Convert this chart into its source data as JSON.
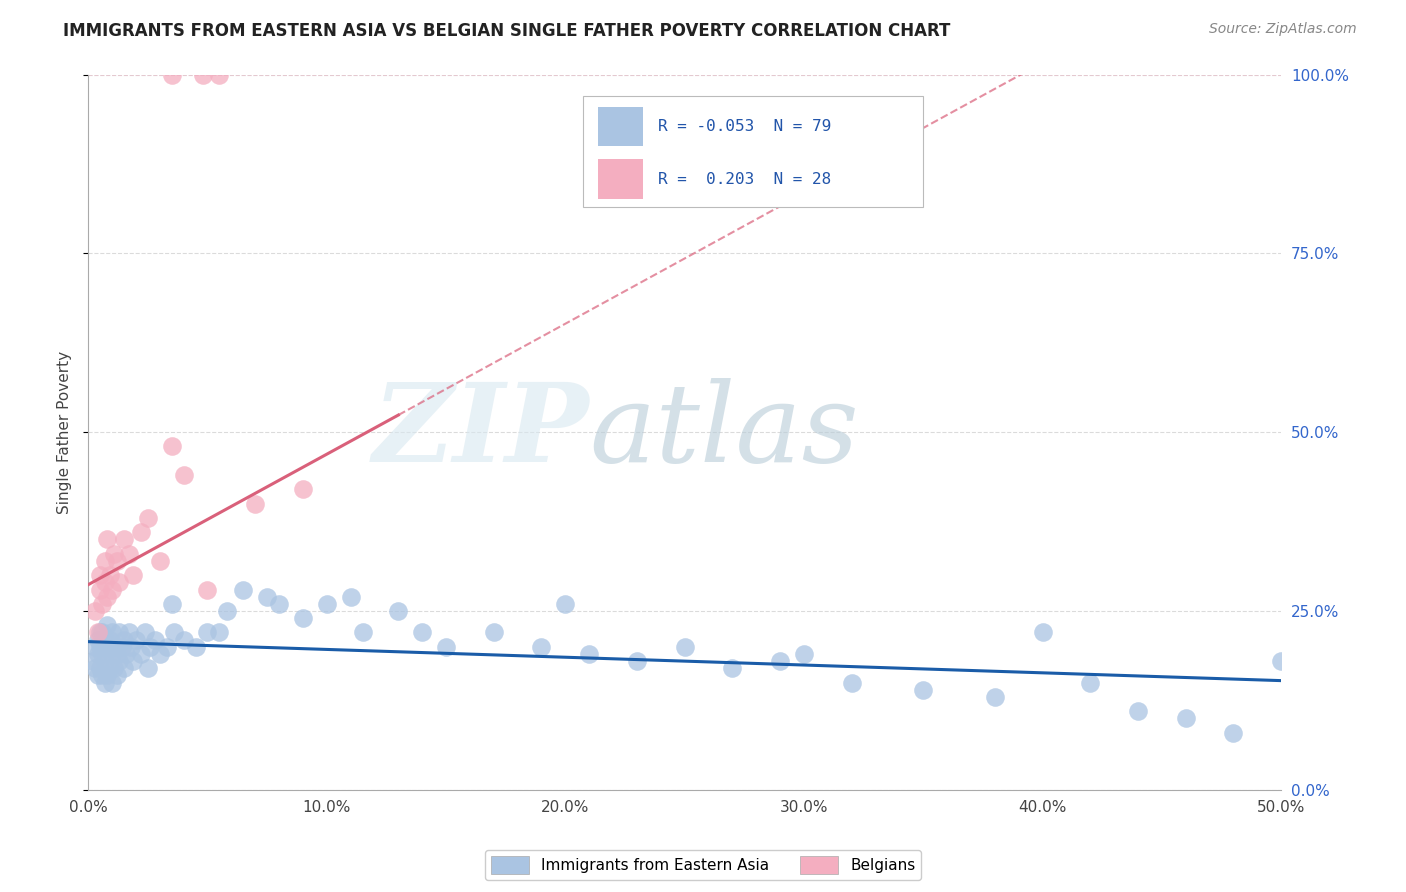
{
  "title": "IMMIGRANTS FROM EASTERN ASIA VS BELGIAN SINGLE FATHER POVERTY CORRELATION CHART",
  "source": "Source: ZipAtlas.com",
  "ylabel": "Single Father Poverty",
  "legend_label_1": "Immigrants from Eastern Asia",
  "legend_label_2": "Belgians",
  "r1": -0.053,
  "n1": 79,
  "r2": 0.203,
  "n2": 28,
  "xlim": [
    0.0,
    0.5
  ],
  "ylim": [
    0.0,
    1.0
  ],
  "xticks": [
    0.0,
    0.1,
    0.2,
    0.3,
    0.4,
    0.5
  ],
  "yticks": [
    0.0,
    0.25,
    0.5,
    0.75,
    1.0
  ],
  "ytick_labels_right": [
    "0.0%",
    "25.0%",
    "50.0%",
    "75.0%",
    "100.0%"
  ],
  "xtick_labels": [
    "0.0%",
    "10.0%",
    "20.0%",
    "30.0%",
    "40.0%",
    "50.0%"
  ],
  "color_blue": "#aac4e2",
  "color_pink": "#f4aec0",
  "line_color_blue": "#1a5ca8",
  "line_color_pink": "#d9607a",
  "blue_x": [
    0.002,
    0.003,
    0.003,
    0.004,
    0.004,
    0.004,
    0.005,
    0.005,
    0.005,
    0.006,
    0.006,
    0.006,
    0.007,
    0.007,
    0.007,
    0.008,
    0.008,
    0.008,
    0.009,
    0.009,
    0.01,
    0.01,
    0.01,
    0.011,
    0.011,
    0.012,
    0.012,
    0.013,
    0.013,
    0.014,
    0.015,
    0.015,
    0.016,
    0.017,
    0.018,
    0.019,
    0.02,
    0.022,
    0.024,
    0.026,
    0.028,
    0.03,
    0.033,
    0.036,
    0.04,
    0.045,
    0.05,
    0.058,
    0.065,
    0.075,
    0.09,
    0.1,
    0.115,
    0.13,
    0.15,
    0.17,
    0.19,
    0.21,
    0.23,
    0.25,
    0.27,
    0.29,
    0.32,
    0.35,
    0.38,
    0.4,
    0.42,
    0.44,
    0.46,
    0.48,
    0.5,
    0.025,
    0.035,
    0.055,
    0.08,
    0.11,
    0.14,
    0.2,
    0.3
  ],
  "blue_y": [
    0.18,
    0.17,
    0.2,
    0.19,
    0.16,
    0.21,
    0.17,
    0.2,
    0.22,
    0.16,
    0.19,
    0.22,
    0.15,
    0.18,
    0.21,
    0.16,
    0.2,
    0.23,
    0.17,
    0.21,
    0.15,
    0.19,
    0.22,
    0.17,
    0.2,
    0.16,
    0.19,
    0.18,
    0.22,
    0.2,
    0.17,
    0.21,
    0.19,
    0.22,
    0.2,
    0.18,
    0.21,
    0.19,
    0.22,
    0.2,
    0.21,
    0.19,
    0.2,
    0.22,
    0.21,
    0.2,
    0.22,
    0.25,
    0.28,
    0.27,
    0.24,
    0.26,
    0.22,
    0.25,
    0.2,
    0.22,
    0.2,
    0.19,
    0.18,
    0.2,
    0.17,
    0.18,
    0.15,
    0.14,
    0.13,
    0.22,
    0.15,
    0.11,
    0.1,
    0.08,
    0.18,
    0.17,
    0.26,
    0.22,
    0.26,
    0.27,
    0.22,
    0.26,
    0.19
  ],
  "pink_x": [
    0.003,
    0.004,
    0.005,
    0.005,
    0.006,
    0.007,
    0.007,
    0.008,
    0.008,
    0.009,
    0.01,
    0.011,
    0.012,
    0.013,
    0.015,
    0.017,
    0.019,
    0.022,
    0.025,
    0.03,
    0.035,
    0.04,
    0.05,
    0.07,
    0.09,
    0.035,
    0.048,
    0.055
  ],
  "pink_y": [
    0.25,
    0.22,
    0.28,
    0.3,
    0.26,
    0.29,
    0.32,
    0.27,
    0.35,
    0.3,
    0.28,
    0.33,
    0.32,
    0.29,
    0.35,
    0.33,
    0.3,
    0.36,
    0.38,
    0.32,
    0.48,
    0.44,
    0.28,
    0.4,
    0.42,
    1.0,
    1.0,
    1.0
  ],
  "blue_trend": [
    0.195,
    0.174
  ],
  "pink_trend_solid": [
    0.295,
    0.495
  ],
  "pink_trend_dashed": [
    0.295,
    0.65
  ]
}
